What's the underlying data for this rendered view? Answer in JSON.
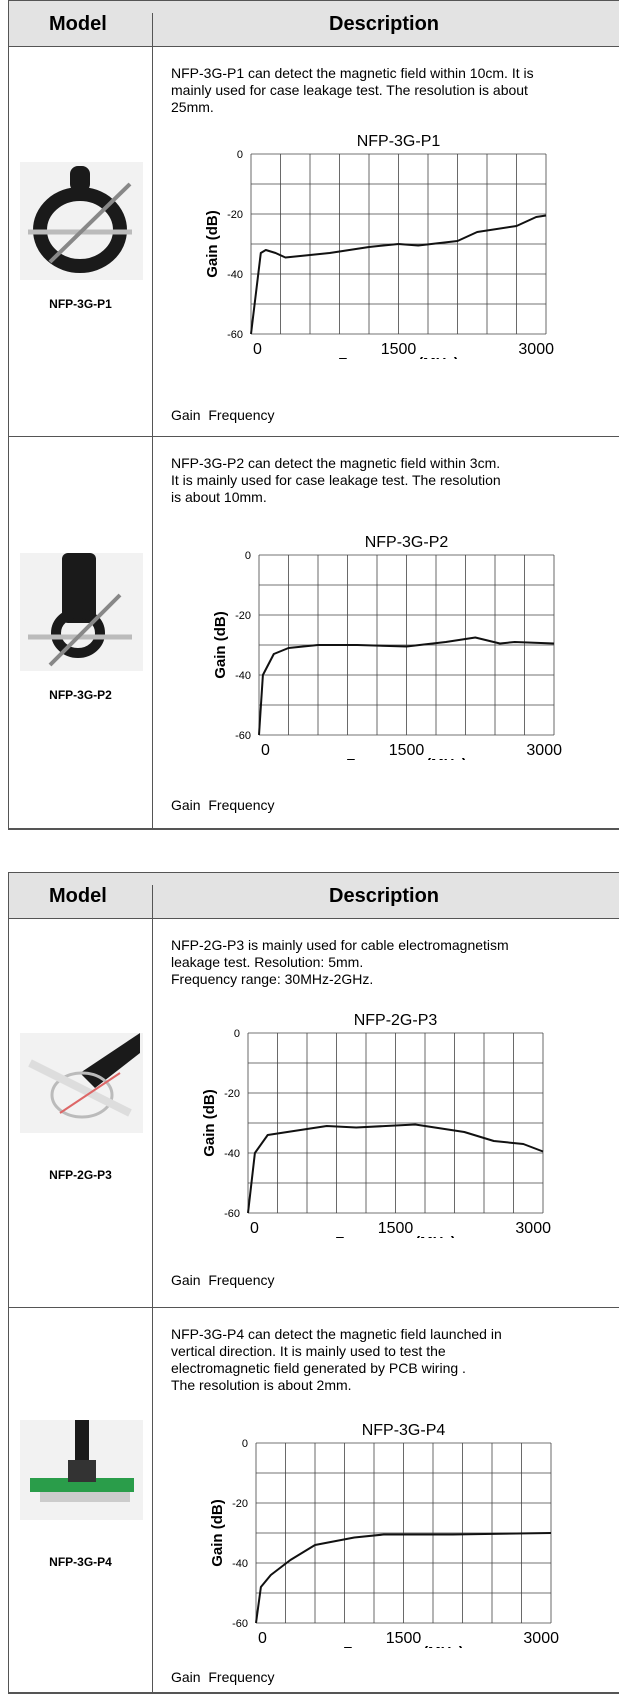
{
  "tables": [
    {
      "header": [
        "Model",
        "Description"
      ],
      "rows": [
        {
          "model": "NFP-3G-P1",
          "description": [
            "NFP-3G-P1 can detect the magnetic field within 10cm. It is",
            "mainly used for case leakage test. The resolution is about",
            "25mm."
          ],
          "chart": {
            "type": "line",
            "title": "NFP-3G-P1",
            "y_label": "Gain (dB)",
            "x_label": "Frequency (MHz)",
            "x": [
              0,
              100,
              150,
              250,
              350,
              500,
              800,
              1200,
              1500,
              1700,
              2100,
              2300,
              2700,
              2900,
              3000
            ],
            "values": [
              -60,
              -33,
              -32,
              -33,
              -34.5,
              -34,
              -33,
              -31,
              -30,
              -30.5,
              -29,
              -26,
              -24,
              -21,
              -20.5
            ],
            "color": "#111111",
            "xlim": [
              0,
              3000
            ],
            "ylim": [
              -60,
              0
            ],
            "xticks": [
              0,
              1500,
              3000
            ],
            "yticks": [
              0,
              -20,
              -40,
              -60
            ],
            "grid_xticks": [
              0,
              300,
              600,
              900,
              1200,
              1500,
              1800,
              2100,
              2400,
              2700,
              3000
            ],
            "grid_yticks": [
              0,
              -10,
              -20,
              -30,
              -40,
              -50,
              -60
            ]
          },
          "caption": "Gain  Frequency"
        },
        {
          "model": "NFP-3G-P2",
          "description": [
            "NFP-3G-P2 can detect the magnetic field within 3cm.",
            "It is mainly used for case leakage test. The resolution",
            "is about 10mm."
          ],
          "chart": {
            "type": "line",
            "title": "NFP-3G-P2",
            "y_label": "Gain (dB)",
            "x_label": "Frequency (MHz)",
            "x": [
              0,
              40,
              150,
              300,
              600,
              1000,
              1500,
              1900,
              2200,
              2450,
              2600,
              3000
            ],
            "values": [
              -60,
              -40,
              -33,
              -31,
              -30,
              -30,
              -30.5,
              -29,
              -27.5,
              -29.5,
              -29,
              -29.5
            ],
            "color": "#111111",
            "xlim": [
              0,
              3000
            ],
            "ylim": [
              -60,
              0
            ],
            "xticks": [
              0,
              1500,
              3000
            ],
            "yticks": [
              0,
              -20,
              -40,
              -60
            ],
            "grid_xticks": [
              0,
              300,
              600,
              900,
              1200,
              1500,
              1800,
              2100,
              2400,
              2700,
              3000
            ],
            "grid_yticks": [
              0,
              -10,
              -20,
              -30,
              -40,
              -50,
              -60
            ]
          },
          "caption": "Gain  Frequency"
        }
      ]
    },
    {
      "header": [
        "Model",
        "Description"
      ],
      "rows": [
        {
          "model": "NFP-2G-P3",
          "description": [
            "NFP-2G-P3 is mainly used for cable electromagnetism",
            "leakage test. Resolution: 5mm.",
            "Frequency range: 30MHz-2GHz."
          ],
          "chart": {
            "type": "line",
            "title": "NFP-2G-P3",
            "y_label": "Gain (dB)",
            "x_label": "Frequency (MHz)",
            "x": [
              0,
              70,
              200,
              400,
              800,
              1100,
              1700,
              2200,
              2500,
              2800,
              3000
            ],
            "values": [
              -60,
              -40,
              -34,
              -33,
              -31,
              -31.5,
              -30.5,
              -33,
              -36,
              -37,
              -39.5
            ],
            "color": "#111111",
            "xlim": [
              0,
              3000
            ],
            "ylim": [
              -60,
              0
            ],
            "xticks": [
              0,
              1500,
              3000
            ],
            "yticks": [
              0,
              -20,
              -40,
              -60
            ],
            "grid_xticks": [
              0,
              300,
              600,
              900,
              1200,
              1500,
              1800,
              2100,
              2400,
              2700,
              3000
            ],
            "grid_yticks": [
              0,
              -10,
              -20,
              -30,
              -40,
              -50,
              -60
            ]
          },
          "caption": "Gain  Frequency"
        },
        {
          "model": "NFP-3G-P4",
          "description": [
            "NFP-3G-P4 can detect the magnetic field launched in",
            "vertical direction. It is mainly used to test the",
            "electromagnetic field generated by PCB wiring .",
            "The resolution is about 2mm."
          ],
          "chart": {
            "type": "line",
            "title": "NFP-3G-P4",
            "y_label": "Gain (dB)",
            "x_label": "Frequency (MHz)",
            "x": [
              0,
              50,
              150,
              350,
              600,
              1000,
              1300,
              2000,
              3000
            ],
            "values": [
              -60,
              -48,
              -44,
              -39,
              -34,
              -31.5,
              -30.5,
              -30.5,
              -30
            ],
            "color": "#111111",
            "xlim": [
              0,
              3000
            ],
            "ylim": [
              -60,
              0
            ],
            "xticks": [
              0,
              1500,
              3000
            ],
            "yticks": [
              0,
              -20,
              -40,
              -60
            ],
            "grid_xticks": [
              0,
              300,
              600,
              900,
              1200,
              1500,
              1800,
              2100,
              2400,
              2700,
              3000
            ],
            "grid_yticks": [
              0,
              -10,
              -20,
              -30,
              -40,
              -50,
              -60
            ]
          },
          "caption": "Gain  Frequency"
        }
      ]
    }
  ]
}
